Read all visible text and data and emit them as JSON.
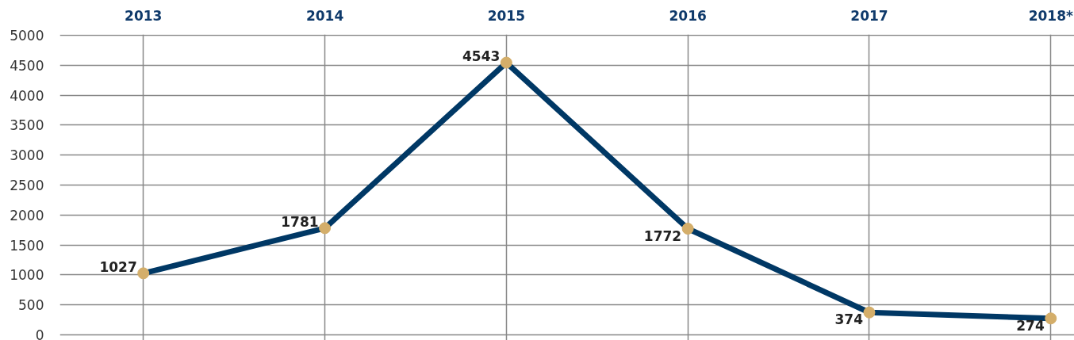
{
  "chart_data": {
    "type": "line",
    "categories": [
      "2013",
      "2014",
      "2015",
      "2016",
      "2017",
      "2018*"
    ],
    "series": [
      {
        "color": "#003865",
        "colors": [
          "#d4ae6a",
          "#d4ae6a",
          "#d4ae6a",
          "#d4ae6a",
          "#d4ae6a",
          "#d4ae6a"
        ],
        "values": [
          1027,
          1781,
          4543,
          1772,
          374,
          274
        ]
      }
    ],
    "ylim": [
      0,
      5000
    ],
    "yticks": [
      0,
      500,
      1000,
      1500,
      2000,
      2500,
      3000,
      3500,
      4000,
      4500,
      5000
    ],
    "grid": true,
    "marker": "circle",
    "line_style": "solid",
    "data_labels": true
  }
}
